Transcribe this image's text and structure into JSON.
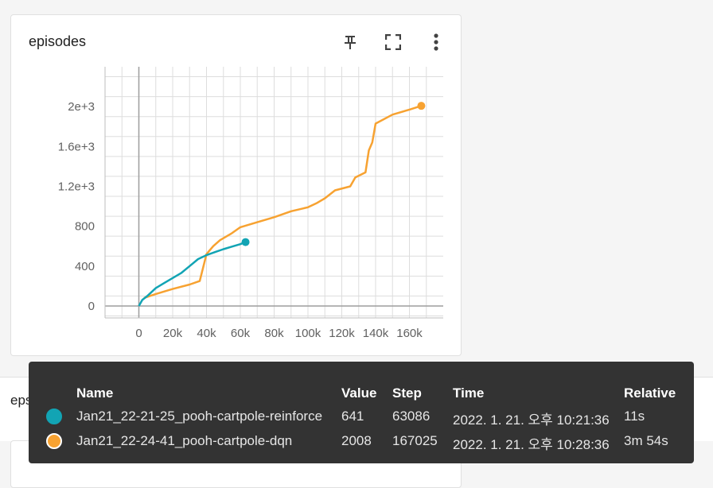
{
  "card": {
    "title": "episodes",
    "pin_icon": "pin-icon",
    "fullscreen_icon": "fullscreen-icon",
    "more_icon": "more-vert-icon"
  },
  "next_section": {
    "title": "epsilon"
  },
  "colors": {
    "reinforce": "#12a4b4",
    "dqn": "#f7a231",
    "axis": "#9e9e9e",
    "grid": "#dddddd",
    "tooltip_bg": "#333333"
  },
  "chart_data": {
    "type": "line",
    "title": "episodes",
    "xlabel": "",
    "ylabel": "",
    "xlim": [
      -20000,
      180000
    ],
    "ylim": [
      -120,
      2400
    ],
    "x_ticks": [
      0,
      20000,
      40000,
      60000,
      80000,
      100000,
      120000,
      140000,
      160000
    ],
    "x_tick_labels": [
      "0",
      "20k",
      "40k",
      "60k",
      "80k",
      "100k",
      "120k",
      "140k",
      "160k"
    ],
    "y_ticks": [
      0,
      400,
      800,
      1200,
      1600,
      2000
    ],
    "y_tick_labels": [
      "0",
      "400",
      "800",
      "1.2e+3",
      "1.6e+3",
      "2e+3"
    ],
    "grid": true,
    "series": [
      {
        "name": "Jan21_22-21-25_pooh-cartpole-reinforce",
        "color": "#12a4b4",
        "x": [
          0,
          2000,
          5000,
          10000,
          15000,
          20000,
          25000,
          30000,
          35000,
          40000,
          45000,
          50000,
          55000,
          60000,
          63086
        ],
        "y": [
          0,
          60,
          100,
          180,
          230,
          280,
          330,
          400,
          470,
          510,
          540,
          570,
          595,
          620,
          641
        ]
      },
      {
        "name": "Jan21_22-24-41_pooh-cartpole-dqn",
        "color": "#f7a231",
        "x": [
          3000,
          10000,
          20000,
          30000,
          36000,
          40000,
          44000,
          48000,
          55000,
          60000,
          70000,
          80000,
          90000,
          100000,
          105000,
          110000,
          116000,
          125000,
          128000,
          134000,
          136000,
          138000,
          140000,
          150000,
          160000,
          167025
        ],
        "y": [
          80,
          120,
          170,
          215,
          250,
          520,
          600,
          660,
          730,
          790,
          840,
          890,
          950,
          990,
          1030,
          1080,
          1160,
          1200,
          1290,
          1340,
          1560,
          1640,
          1830,
          1920,
          1970,
          2008
        ]
      }
    ]
  },
  "tooltip": {
    "headers": {
      "name": "Name",
      "value": "Value",
      "step": "Step",
      "time": "Time",
      "relative": "Relative"
    },
    "rows": [
      {
        "name": "Jan21_22-21-25_pooh-cartpole-reinforce",
        "value": "641",
        "step": "63086",
        "time": "2022. 1. 21. 오후 10:21:36",
        "relative": "11s",
        "color": "#12a4b4"
      },
      {
        "name": "Jan21_22-24-41_pooh-cartpole-dqn",
        "value": "2008",
        "step": "167025",
        "time": "2022. 1. 21. 오후 10:28:36",
        "relative": "3m 54s",
        "color": "#f7a231"
      }
    ]
  }
}
